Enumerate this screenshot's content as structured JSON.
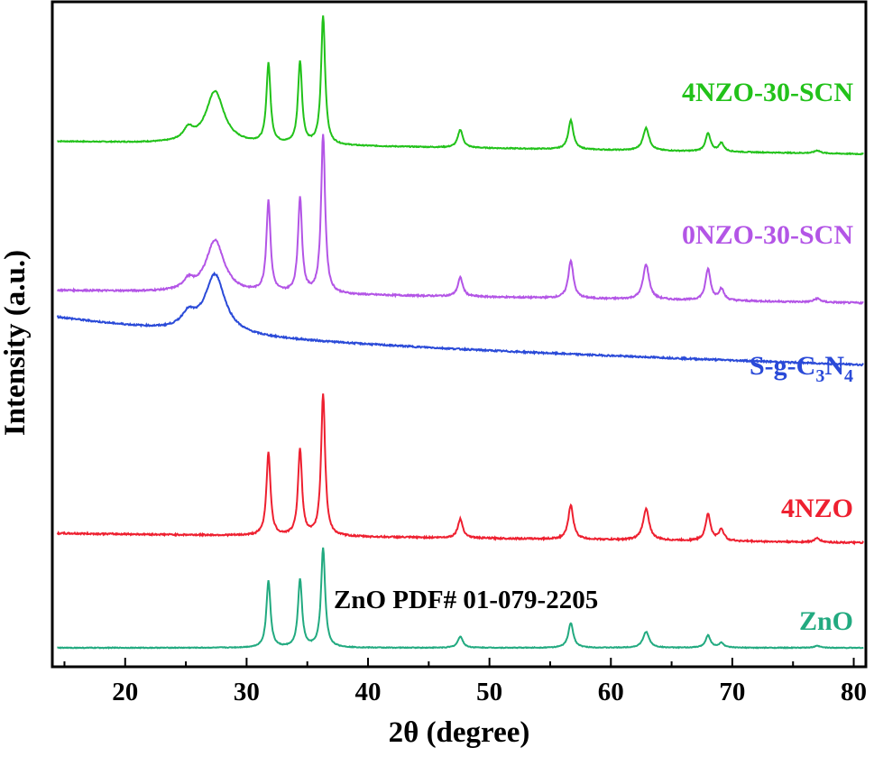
{
  "chart_data": {
    "type": "line",
    "xlabel": "2θ (degree)",
    "ylabel": "Intensity (a.u.)",
    "xlim": [
      14,
      81
    ],
    "xticks": [
      20,
      30,
      40,
      50,
      60,
      70,
      80
    ],
    "y_ticks_shown": false,
    "grid": false,
    "legend": "none (series labeled inline at right)",
    "annotations": [
      {
        "text": "ZnO PDF# 01-079-2205",
        "x": 45,
        "series": "ZnO"
      }
    ],
    "series": [
      {
        "name": "4NZO-30-SCN",
        "color": "#22c21a",
        "offset": 4.0,
        "baseline": 0.0,
        "slope": -0.002,
        "noise": 0.005,
        "peaks": [
          [
            25.2,
            0.12,
            0.5
          ],
          [
            27.4,
            0.55,
            0.9
          ],
          [
            31.8,
            0.84,
            0.2
          ],
          [
            34.4,
            0.87,
            0.2
          ],
          [
            36.3,
            1.36,
            0.2
          ],
          [
            47.6,
            0.19,
            0.25
          ],
          [
            56.7,
            0.31,
            0.25
          ],
          [
            62.9,
            0.24,
            0.3
          ],
          [
            68.0,
            0.19,
            0.25
          ],
          [
            69.1,
            0.09,
            0.25
          ],
          [
            77.0,
            0.03,
            0.3
          ]
        ]
      },
      {
        "name": "0NZO-30-SCN",
        "color": "#b355e6",
        "offset": 3.0,
        "baseline": 0.0,
        "slope": -0.002,
        "noise": 0.008,
        "peaks": [
          [
            25.2,
            0.1,
            0.5
          ],
          [
            27.4,
            0.55,
            0.9
          ],
          [
            31.8,
            0.96,
            0.2
          ],
          [
            34.4,
            1.0,
            0.2
          ],
          [
            36.3,
            1.68,
            0.2
          ],
          [
            47.6,
            0.2,
            0.25
          ],
          [
            56.7,
            0.4,
            0.25
          ],
          [
            62.9,
            0.37,
            0.3
          ],
          [
            68.0,
            0.33,
            0.25
          ],
          [
            69.1,
            0.12,
            0.25
          ],
          [
            77.0,
            0.04,
            0.3
          ]
        ]
      },
      {
        "name": "S-g-C3N4",
        "color": "#2a4ad8",
        "offset": 2.0,
        "baseline": 0.1,
        "slope": -0.004,
        "noise": 0.008,
        "decay": [
          0.25,
          18
        ],
        "peaks": [
          [
            25.2,
            0.15,
            0.7
          ],
          [
            27.4,
            0.62,
            1.0
          ]
        ]
      },
      {
        "name": "4NZO",
        "color": "#ee2030",
        "offset": 1.0,
        "baseline": 0.0,
        "slope": -0.0015,
        "noise": 0.008,
        "peaks": [
          [
            31.8,
            0.88,
            0.2
          ],
          [
            34.4,
            0.91,
            0.2
          ],
          [
            36.3,
            1.5,
            0.2
          ],
          [
            47.6,
            0.2,
            0.25
          ],
          [
            56.7,
            0.36,
            0.25
          ],
          [
            62.9,
            0.33,
            0.3
          ],
          [
            68.0,
            0.28,
            0.25
          ],
          [
            69.1,
            0.12,
            0.25
          ],
          [
            77.0,
            0.04,
            0.3
          ]
        ]
      },
      {
        "name": "ZnO",
        "color": "#22aa80",
        "offset": 0.0,
        "baseline": 0.0,
        "slope": 0.0,
        "noise": 0.004,
        "peaks": [
          [
            31.8,
            0.71,
            0.2
          ],
          [
            34.4,
            0.72,
            0.2
          ],
          [
            36.3,
            1.05,
            0.2
          ],
          [
            47.6,
            0.12,
            0.25
          ],
          [
            56.7,
            0.26,
            0.25
          ],
          [
            62.9,
            0.17,
            0.3
          ],
          [
            68.0,
            0.13,
            0.25
          ],
          [
            69.1,
            0.05,
            0.25
          ],
          [
            77.0,
            0.02,
            0.3
          ]
        ]
      }
    ]
  }
}
